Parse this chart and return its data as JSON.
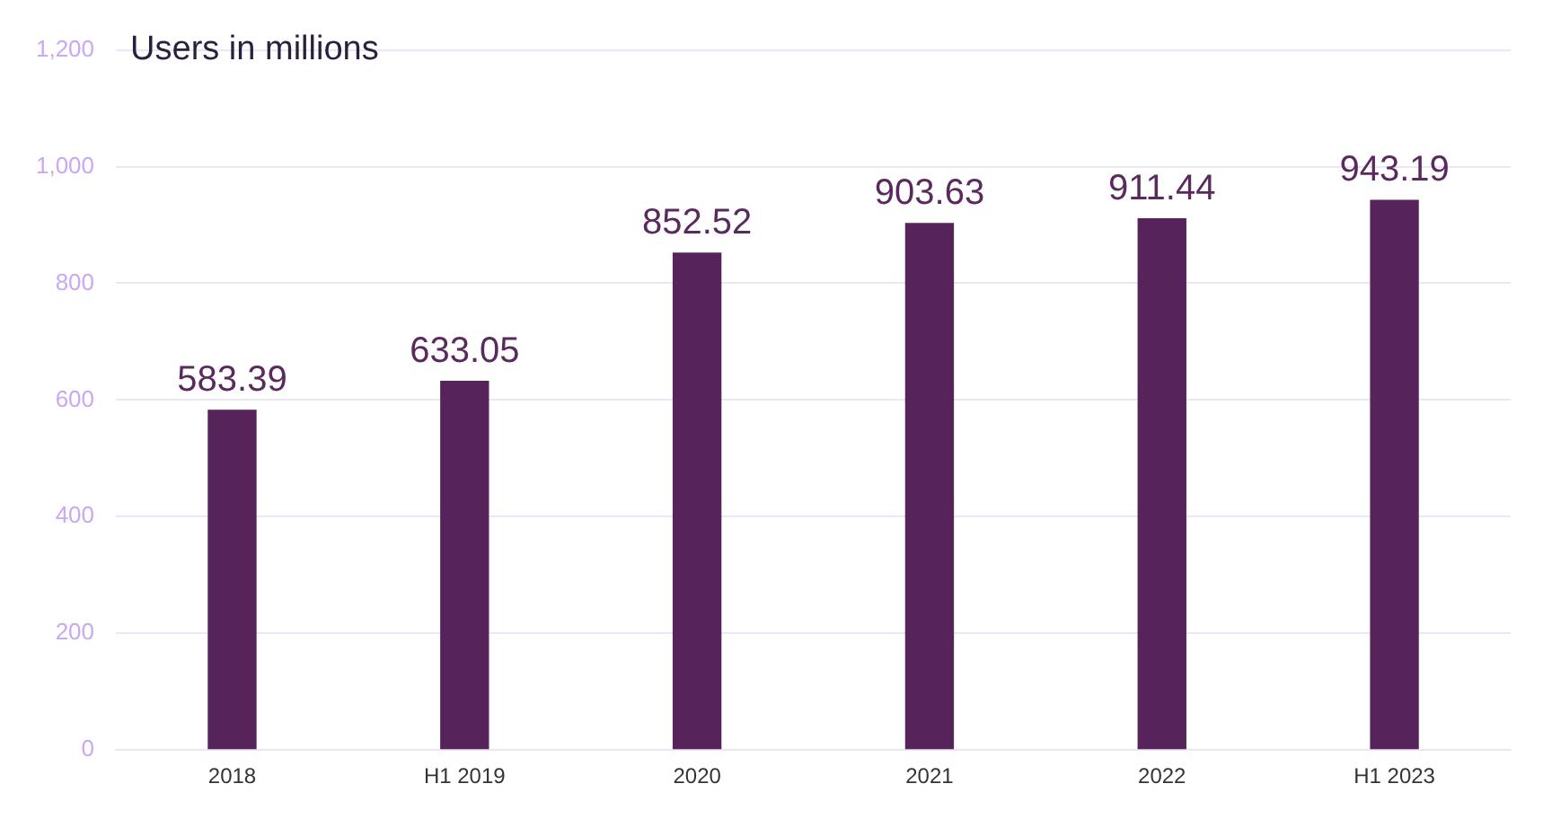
{
  "chart_data": {
    "type": "bar",
    "title": "Users in millions",
    "categories": [
      "2018",
      "H1 2019",
      "2020",
      "2021",
      "2022",
      "H1 2023"
    ],
    "values": [
      583.39,
      633.05,
      852.52,
      903.63,
      911.44,
      943.19
    ],
    "color": "#56235a",
    "ylim": [
      0,
      1200
    ],
    "yticks": [
      0,
      200,
      400,
      600,
      800,
      {
        "value": 1000,
        "label": "1,000"
      },
      {
        "value": 1200,
        "label": "1,200"
      }
    ],
    "grid": "y",
    "data_labels": true,
    "legend": false
  }
}
